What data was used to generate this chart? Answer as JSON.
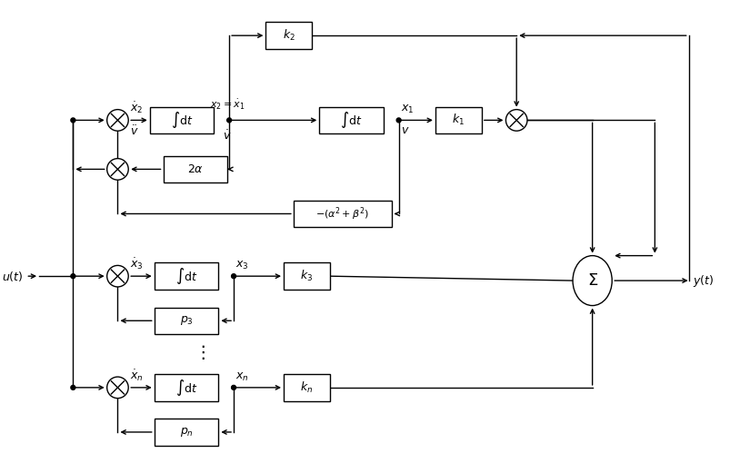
{
  "fig_width": 8.14,
  "fig_height": 5.21,
  "dpi": 100,
  "bg_color": "#ffffff"
}
